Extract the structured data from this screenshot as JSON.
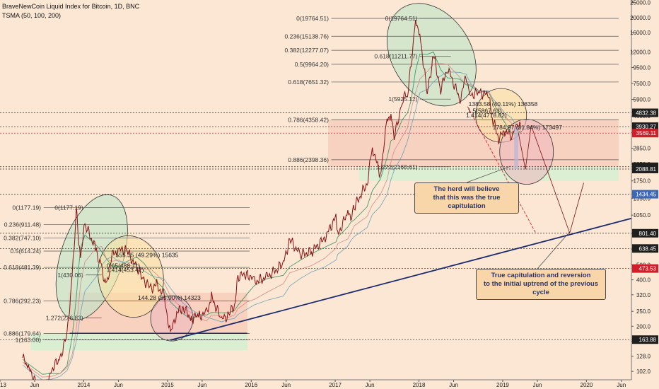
{
  "header": {
    "title": "BraveNewCoin Liquid Index for Bitcoin, 1D, BNC",
    "indicator": "TSMA (50, 100, 200)"
  },
  "callouts": {
    "herd": [
      "The herd will believe",
      "that this was the true capitulation"
    ],
    "true_cap": [
      "True capitulation and reversion",
      "to the initial uptrend of the previous cycle"
    ]
  },
  "colors": {
    "background": "#fbe7d3",
    "price": "#8b0f12",
    "green_zone": "#d6f0d2",
    "red_zone": "#f7c9b8",
    "trendline": "#1c2a6e",
    "ellipse_green": "#b8e6c8",
    "ellipse_yellow": "#fbe0a0",
    "ellipse_pink": "#ecb7bd",
    "badge_dark": "#1f1f1f",
    "badge_red": "#d11f2a",
    "badge_blue": "#3a67b8"
  },
  "chart_data": {
    "type": "line",
    "y_scale": "log",
    "ylim": [
      90,
      26000
    ],
    "xlim": [
      "2013-01-01",
      "2020-07-15"
    ],
    "x_ticks": [
      {
        "label": "2013",
        "date": "2013-01-01"
      },
      {
        "label": "Jun",
        "date": "2013-06-01"
      },
      {
        "label": "2014",
        "date": "2014-01-01"
      },
      {
        "label": "Jun",
        "date": "2014-06-01"
      },
      {
        "label": "2015",
        "date": "2015-01-01"
      },
      {
        "label": "Jun",
        "date": "2015-06-01"
      },
      {
        "label": "2016",
        "date": "2016-01-01"
      },
      {
        "label": "Jun",
        "date": "2016-06-01"
      },
      {
        "label": "2017",
        "date": "2017-01-01"
      },
      {
        "label": "Jun",
        "date": "2017-06-01"
      },
      {
        "label": "2018",
        "date": "2018-01-01"
      },
      {
        "label": "Jun",
        "date": "2018-06-01"
      },
      {
        "label": "2019",
        "date": "2019-01-01"
      },
      {
        "label": "Jun",
        "date": "2019-06-01"
      },
      {
        "label": "2020",
        "date": "2020-01-01"
      },
      {
        "label": "Jun",
        "date": "2020-06-01"
      }
    ],
    "y_ticks": [
      25000,
      20000,
      16000,
      12000,
      9500,
      7500,
      5900,
      4600,
      3600,
      2850,
      2250,
      1750,
      1350,
      1050,
      800,
      630,
      500,
      400,
      320,
      250,
      200,
      160,
      128,
      102
    ],
    "price_labels": [
      {
        "text": "4832.38",
        "value": 4832.38,
        "style": "dark"
      },
      {
        "text": "3930.27",
        "value": 3930.27,
        "style": "dark"
      },
      {
        "text": "3569.11",
        "value": 3569.11,
        "style": "red"
      },
      {
        "text": "2160.76",
        "value": 2160.76,
        "style": "dark"
      },
      {
        "text": "2088.81",
        "value": 2088.81,
        "style": "dark"
      },
      {
        "text": "1434.45",
        "value": 1434.45,
        "style": "blue"
      },
      {
        "text": "801.40",
        "value": 801.4,
        "style": "dark"
      },
      {
        "text": "638.45",
        "value": 638.45,
        "style": "dark"
      },
      {
        "text": "473.53",
        "value": 473.53,
        "style": "red"
      },
      {
        "text": "163.88",
        "value": 163.88,
        "style": "dark"
      }
    ],
    "fib_2014": [
      {
        "label": "0(1177.19)",
        "value": 1177.19
      },
      {
        "label": "0.236(911.48)",
        "value": 911.48
      },
      {
        "label": "0.382(747.10)",
        "value": 747.1
      },
      {
        "label": "0.5(614.24)",
        "value": 614.24
      },
      {
        "label": "0.618(481.39)",
        "value": 481.39
      },
      {
        "label": "0.786(292.23)",
        "value": 292.23
      },
      {
        "label": "0.886(179.64)",
        "value": 179.64
      },
      {
        "label": "1(163.00)",
        "value": 163.0
      }
    ],
    "fib_2014_inner": [
      {
        "label": "0(1177.19)",
        "value": 1177.19
      },
      {
        "label": "1(430.06)",
        "value": 430.06
      },
      {
        "label": "1.272(226.83)",
        "value": 226.83
      }
    ],
    "fib_2018": [
      {
        "label": "0(19764.51)",
        "value": 19764.51
      },
      {
        "label": "0.236(15138.76)",
        "value": 15138.76
      },
      {
        "label": "0.382(12277.07)",
        "value": 12277.07
      },
      {
        "label": "0.5(9964.20)",
        "value": 9964.2
      },
      {
        "label": "0.618(7651.32)",
        "value": 7651.32
      },
      {
        "label": "0.786(4358.42)",
        "value": 4358.42
      },
      {
        "label": "0.886(2398.36)",
        "value": 2398.36
      }
    ],
    "fib_2018_inner": [
      {
        "label": "0(19764.51)",
        "value": 19764.51
      },
      {
        "label": "0.618(11211.77)",
        "value": 11211.77
      },
      {
        "label": "1(5925.12)",
        "value": 5925.12
      },
      {
        "label": "1.272(2160.61)",
        "value": 2160.61
      }
    ],
    "annotations": [
      {
        "text": "555.35 (49.29%) 15635",
        "date": "2014-05-20",
        "value": 560
      },
      {
        "text": "144.28 (35.90%) 14323",
        "date": "2014-08-25",
        "value": 296
      },
      {
        "text": "1383.58 (40.11%) 138358",
        "date": "2018-08-05",
        "value": 5350
      },
      {
        "text": "1784.97 (31.84%) 173497",
        "date": "2018-11-18",
        "value": 3780
      },
      {
        "text": "1.5(5867.63)",
        "date": "2018-08-01",
        "value": 4840
      },
      {
        "text": "1.414(4778.82)",
        "date": "2018-07-25",
        "value": 4500
      },
      {
        "text": "0.65(488.11)",
        "date": "2014-04-10",
        "value": 480
      },
      {
        "text": "1.414(453.42)",
        "date": "2014-04-10",
        "value": 450
      }
    ],
    "price_series": {
      "name": "BNC",
      "x": [
        "2013-04-10",
        "2013-05-01",
        "2013-07-05",
        "2013-08-15",
        "2013-09-20",
        "2013-10-20",
        "2013-11-12",
        "2013-11-30",
        "2013-12-10",
        "2013-12-18",
        "2014-01-06",
        "2014-02-25",
        "2014-03-20",
        "2014-04-11",
        "2014-05-05",
        "2014-06-03",
        "2014-07-05",
        "2014-08-19",
        "2014-09-20",
        "2014-10-20",
        "2014-11-15",
        "2014-12-15",
        "2015-01-14",
        "2015-02-10",
        "2015-03-10",
        "2015-04-15",
        "2015-05-20",
        "2015-06-20",
        "2015-07-12",
        "2015-08-25",
        "2015-09-25",
        "2015-10-20",
        "2015-11-04",
        "2015-12-15",
        "2016-01-15",
        "2016-03-10",
        "2016-05-20",
        "2016-06-17",
        "2016-08-02",
        "2016-09-20",
        "2016-11-15",
        "2017-01-04",
        "2017-01-12",
        "2017-02-25",
        "2017-03-10",
        "2017-03-25",
        "2017-05-20",
        "2017-06-12",
        "2017-07-16",
        "2017-08-15",
        "2017-09-01",
        "2017-09-15",
        "2017-10-20",
        "2017-11-12",
        "2017-11-28",
        "2017-12-17",
        "2018-01-05",
        "2018-02-06",
        "2018-03-05",
        "2018-04-06",
        "2018-05-05",
        "2018-06-29",
        "2018-07-25",
        "2018-08-14",
        "2018-09-20",
        "2018-10-30",
        "2018-11-20",
        "2018-12-15",
        "2019-01-10",
        "2019-02-08",
        "2019-02-25",
        "2019-03-20"
      ],
      "values": [
        125,
        110,
        72,
        105,
        125,
        175,
        420,
        1150,
        680,
        560,
        920,
        620,
        470,
        360,
        580,
        620,
        630,
        480,
        400,
        350,
        370,
        320,
        178,
        245,
        265,
        225,
        235,
        242,
        310,
        220,
        238,
        275,
        420,
        440,
        390,
        415,
        510,
        730,
        580,
        610,
        740,
        1020,
        780,
        1100,
        980,
        1180,
        1700,
        2900,
        1900,
        4300,
        4700,
        3300,
        5800,
        6500,
        10000,
        19500,
        15500,
        6400,
        11500,
        6800,
        9500,
        5900,
        8300,
        6300,
        6550,
        6300,
        4300,
        3300,
        3700,
        3400,
        4000,
        4040
      ]
    }
  }
}
